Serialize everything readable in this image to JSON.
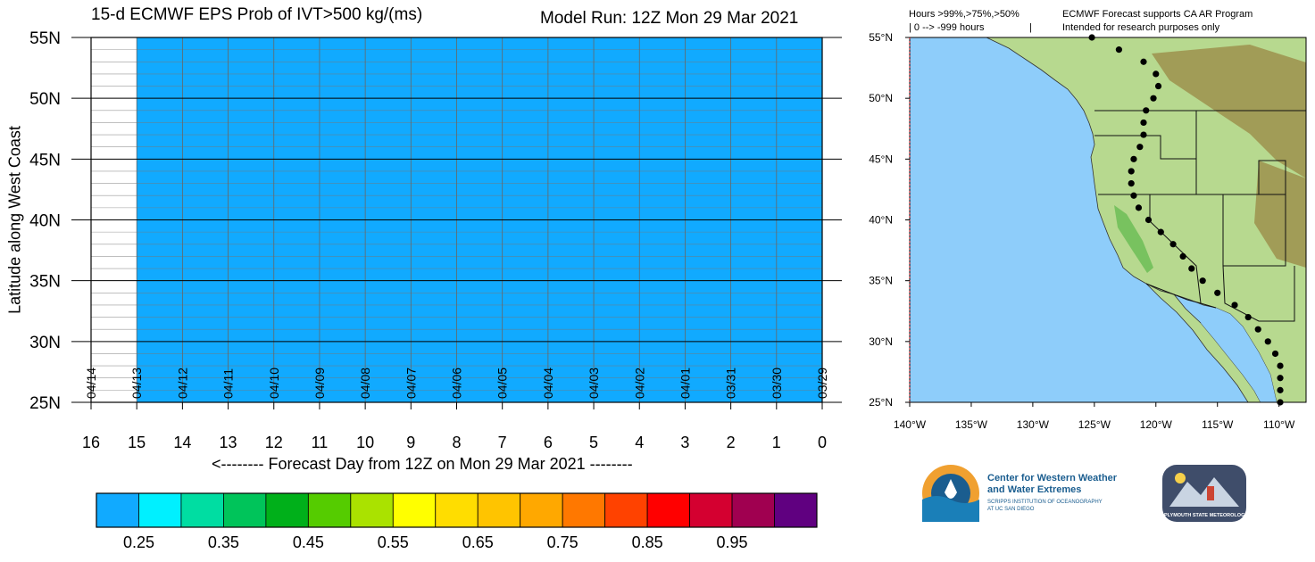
{
  "header": {
    "title": "15-d ECMWF EPS Prob of IVT>500 kg/(ms)",
    "model_run": "Model Run: 12Z Mon 29 Mar 2021"
  },
  "map_header": {
    "legend_line1": "Hours >99%,>75%,>50%",
    "legend_line2": "| 0 --> -999 hours",
    "legend_sep": "|",
    "note_line1": "ECMWF Forecast supports CA AR Program",
    "note_line2": "Intended for research purposes only"
  },
  "chart_data": {
    "type": "heatmap",
    "title": "15-d ECMWF EPS Prob of IVT>500 kg/(ms)",
    "subtitle": "Model Run: 12Z Mon 29 Mar 2021",
    "xlabel": "<-------- Forecast Day from 12Z on Mon 29 Mar 2021 --------",
    "ylabel": "Latitude along West Coast",
    "x_ticks": [
      16,
      15,
      14,
      13,
      12,
      11,
      10,
      9,
      8,
      7,
      6,
      5,
      4,
      3,
      2,
      1,
      0
    ],
    "x_range": [
      16,
      0
    ],
    "y_ticks": [
      "55N",
      "50N",
      "45N",
      "40N",
      "35N",
      "30N",
      "25N"
    ],
    "y_range": [
      25,
      55
    ],
    "date_labels": [
      "04/14",
      "04/13",
      "04/12",
      "04/11",
      "04/10",
      "04/09",
      "04/08",
      "04/07",
      "04/06",
      "04/05",
      "04/04",
      "04/03",
      "04/02",
      "04/01",
      "03/31",
      "03/30",
      "03/29"
    ],
    "filled_region": {
      "day_from": 0,
      "day_to": 15,
      "lat_from": 25,
      "lat_to": 55,
      "color": "#11aaff",
      "prob_bin": "0.2-0.3"
    },
    "grid": true,
    "colorbar": {
      "colors": [
        "#11aaff",
        "#00f0ff",
        "#00dda2",
        "#00c45a",
        "#00b01a",
        "#55cc00",
        "#aae200",
        "#ffff00",
        "#ffdd00",
        "#ffc400",
        "#ffa800",
        "#ff7800",
        "#ff4200",
        "#ff0000",
        "#d40030",
        "#a00050",
        "#600080"
      ],
      "labels": [
        "0.25",
        "0.35",
        "0.45",
        "0.55",
        "0.65",
        "0.75",
        "0.85",
        "0.95"
      ]
    }
  },
  "map": {
    "lon_labels": [
      "140°W",
      "135°W",
      "130°W",
      "125°W",
      "120°W",
      "115°W",
      "110°W"
    ],
    "lat_labels": [
      "55°N",
      "50°N",
      "45°N",
      "40°N",
      "35°N",
      "30°N",
      "25°N"
    ],
    "ocean_color": "#8ecdfa"
  },
  "logos": {
    "cw3e_line1": "Center for Western Weather",
    "cw3e_line2": "and Water Extremes",
    "cw3e_line3": "SCRIPPS INSTITUTION OF OCEANOGRAPHY",
    "cw3e_line4": "AT UC SAN DIEGO",
    "plymouth": "PLYMOUTH STATE METEOROLOGY"
  }
}
